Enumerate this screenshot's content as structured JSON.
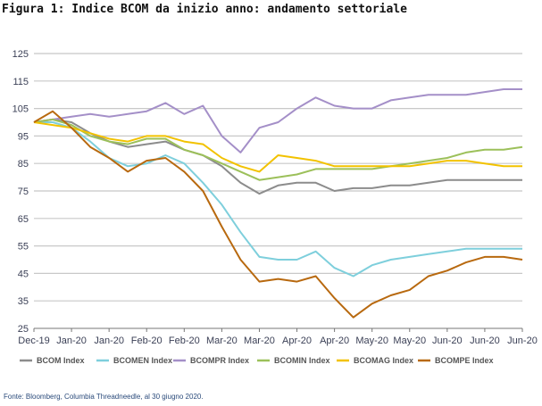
{
  "page_title": "Figura 1: Indice BCOM da inizio anno: andamento settoriale",
  "source_note": "Fonte: Bloomberg, Columbia Threadneedle, al 30 giugno 2020.",
  "chart_data": {
    "type": "line",
    "title": "Figura 1: Indice BCOM da inizio anno: andamento settoriale",
    "xlabel": "",
    "ylabel": "",
    "ylim": [
      25,
      125
    ],
    "yticks": [
      25,
      35,
      45,
      55,
      65,
      75,
      85,
      95,
      105,
      115,
      125
    ],
    "xticks": [
      "Dec-19",
      "Jan-20",
      "Jan-20",
      "Feb-20",
      "Feb-20",
      "Mar-20",
      "Mar-20",
      "Apr-20",
      "Apr-20",
      "May-20",
      "May-20",
      "Jun-20",
      "Jun-20",
      "Jun-20"
    ],
    "grid": "horizontal",
    "legend_position": "bottom",
    "x": [
      "2019-12-31",
      "2020-01-07",
      "2020-01-14",
      "2020-01-21",
      "2020-01-28",
      "2020-02-04",
      "2020-02-11",
      "2020-02-18",
      "2020-02-25",
      "2020-03-03",
      "2020-03-10",
      "2020-03-17",
      "2020-03-24",
      "2020-03-31",
      "2020-04-07",
      "2020-04-14",
      "2020-04-21",
      "2020-04-28",
      "2020-05-05",
      "2020-05-12",
      "2020-05-19",
      "2020-05-26",
      "2020-06-02",
      "2020-06-09",
      "2020-06-16",
      "2020-06-23",
      "2020-06-30"
    ],
    "series": [
      {
        "name": "BCOM Index",
        "color": "#8c8c8c",
        "values": [
          100,
          101,
          100,
          96,
          93,
          91,
          92,
          93,
          90,
          88,
          84,
          78,
          74,
          77,
          78,
          78,
          75,
          76,
          76,
          77,
          77,
          78,
          79,
          79,
          79,
          79,
          79
        ]
      },
      {
        "name": "BCOMEN Index",
        "color": "#7ecfdc",
        "values": [
          100,
          100,
          98,
          93,
          87,
          84,
          85,
          88,
          85,
          78,
          70,
          60,
          51,
          50,
          50,
          53,
          47,
          44,
          48,
          50,
          51,
          52,
          53,
          54,
          54,
          54,
          54
        ]
      },
      {
        "name": "BCOMPR Index",
        "color": "#a48fc8",
        "values": [
          100,
          101,
          102,
          103,
          102,
          103,
          104,
          107,
          103,
          106,
          95,
          89,
          98,
          100,
          105,
          109,
          106,
          105,
          105,
          108,
          109,
          110,
          110,
          110,
          111,
          112,
          112
        ]
      },
      {
        "name": "BCOMIN Index",
        "color": "#9cc05a",
        "values": [
          100,
          101,
          99,
          95,
          93,
          92,
          94,
          94,
          90,
          88,
          85,
          82,
          79,
          80,
          81,
          83,
          83,
          83,
          83,
          84,
          85,
          86,
          87,
          89,
          90,
          90,
          91
        ]
      },
      {
        "name": "BCOMAG Index",
        "color": "#f2c200",
        "values": [
          100,
          99,
          98,
          96,
          94,
          93,
          95,
          95,
          93,
          92,
          87,
          84,
          82,
          88,
          87,
          86,
          84,
          84,
          84,
          84,
          84,
          85,
          86,
          86,
          85,
          84,
          84
        ]
      },
      {
        "name": "BCOMPE Index",
        "color": "#b8690f",
        "values": [
          100,
          104,
          98,
          91,
          87,
          82,
          86,
          87,
          82,
          75,
          62,
          50,
          42,
          43,
          42,
          44,
          36,
          29,
          34,
          37,
          39,
          44,
          46,
          49,
          51,
          51,
          50
        ]
      }
    ]
  }
}
